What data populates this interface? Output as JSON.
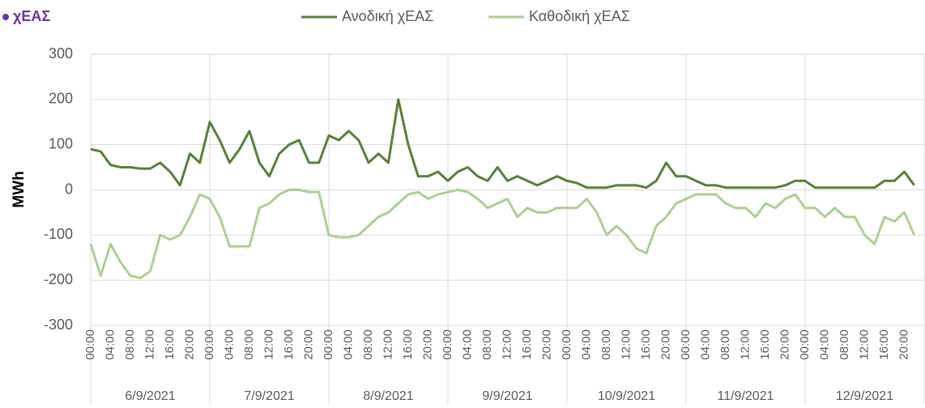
{
  "chart_data": {
    "type": "line",
    "title": "χΕΑΣ",
    "y_label": "MWh",
    "categories": [
      "00:00",
      null,
      "04:00",
      null,
      "08:00",
      null,
      "12:00",
      null,
      "16:00",
      null,
      "20:00",
      null,
      "00:00",
      null,
      "04:00",
      null,
      "08:00",
      null,
      "12:00",
      null,
      "16:00",
      null,
      "20:00",
      null,
      "00:00",
      null,
      "04:00",
      null,
      "08:00",
      null,
      "12:00",
      null,
      "16:00",
      null,
      "20:00",
      null,
      "00:00",
      null,
      "04:00",
      null,
      "08:00",
      null,
      "12:00",
      null,
      "16:00",
      null,
      "20:00",
      null,
      "00:00",
      null,
      "04:00",
      null,
      "08:00",
      null,
      "12:00",
      null,
      "16:00",
      null,
      "20:00",
      null,
      "00:00",
      null,
      "04:00",
      null,
      "08:00",
      null,
      "12:00",
      null,
      "16:00",
      null,
      "20:00",
      null,
      "00:00",
      null,
      "04:00",
      null,
      "08:00",
      null,
      "12:00",
      null,
      "16:00",
      null,
      "20:00",
      null
    ],
    "days": [
      "6/9/2021",
      "7/9/2021",
      "8/9/2021",
      "9/9/2021",
      "10/9/2021",
      "11/9/2021",
      "12/9/2021"
    ],
    "series": [
      {
        "name": "Ανοδική χΕΑΣ",
        "color": "#548235",
        "values": [
          90,
          85,
          55,
          50,
          50,
          47,
          47,
          60,
          40,
          10,
          80,
          60,
          150,
          110,
          60,
          90,
          130,
          60,
          30,
          80,
          100,
          110,
          60,
          60,
          120,
          110,
          130,
          110,
          60,
          80,
          60,
          200,
          100,
          30,
          30,
          40,
          20,
          40,
          50,
          30,
          20,
          50,
          20,
          30,
          20,
          10,
          20,
          30,
          20,
          15,
          5,
          5,
          5,
          10,
          10,
          10,
          5,
          20,
          60,
          30,
          30,
          20,
          10,
          10,
          5,
          5,
          5,
          5,
          5,
          5,
          10,
          20,
          20,
          5,
          5,
          5,
          5,
          5,
          5,
          5,
          20,
          20,
          40,
          10
        ]
      },
      {
        "name": "Καθοδική χΕΑΣ",
        "color": "#a9d18e",
        "values": [
          -120,
          -190,
          -120,
          -160,
          -190,
          -195,
          -180,
          -100,
          -110,
          -100,
          -60,
          -10,
          -20,
          -60,
          -125,
          -125,
          -125,
          -40,
          -30,
          -10,
          0,
          0,
          -5,
          -5,
          -100,
          -105,
          -105,
          -100,
          -80,
          -60,
          -50,
          -30,
          -10,
          -5,
          -20,
          -10,
          -5,
          0,
          -5,
          -20,
          -40,
          -30,
          -20,
          -60,
          -40,
          -50,
          -50,
          -40,
          -40,
          -40,
          -20,
          -50,
          -100,
          -80,
          -100,
          -130,
          -140,
          -80,
          -60,
          -30,
          -20,
          -10,
          -10,
          -10,
          -30,
          -40,
          -40,
          -60,
          -30,
          -40,
          -20,
          -10,
          -40,
          -40,
          -60,
          -40,
          -60,
          -60,
          -100,
          -120,
          -60,
          -70,
          -50,
          -100
        ]
      }
    ],
    "ylim": [
      -300,
      300
    ],
    "yticks": [
      -300,
      -200,
      -100,
      0,
      100,
      200,
      300
    ],
    "grid": true,
    "legend": "top"
  }
}
